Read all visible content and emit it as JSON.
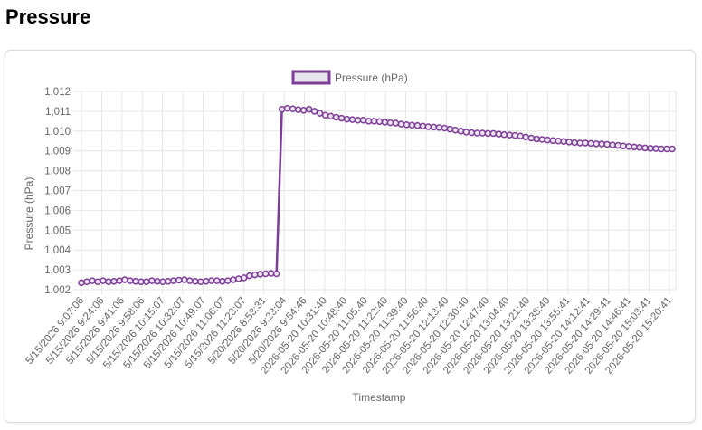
{
  "page": {
    "title": "Pressure"
  },
  "colors": {
    "series": "#7d3c98",
    "legend_fill": "#e8e4ee",
    "grid": "#e6e6e6",
    "text": "#666666"
  },
  "chart_data": {
    "type": "line",
    "title": "",
    "xlabel": "Timestamp",
    "ylabel": "Pressure (hPa)",
    "ylim": [
      1002,
      1012
    ],
    "yticks": [
      "1,002",
      "1,003",
      "1,004",
      "1,005",
      "1,006",
      "1,007",
      "1,008",
      "1,009",
      "1,010",
      "1,011",
      "1,012"
    ],
    "legend_position": "top-center",
    "grid": true,
    "x_tick_labels": [
      "5/15/2026  9:07:06",
      "5/15/2026  9:24:06",
      "5/15/2026  9:41:06",
      "5/15/2026  9:58:06",
      "5/15/2026  10:15:07",
      "5/15/2026  10:32:07",
      "5/15/2026  10:49:07",
      "5/15/2026  11:06:07",
      "5/15/2026  11:23:07",
      "5/20/2026  8:53:31",
      "5/20/2026  9:23:04",
      "5/20/2026  9:54:46",
      "2026-05-20 10:31:40",
      "2026-05-20 10:48:40",
      "2026-05-20 11:05:40",
      "2026-05-20 11:22:40",
      "2026-05-20 11:39:40",
      "2026-05-20 11:56:40",
      "2026-05-20 12:13:40",
      "2026-05-20 12:30:40",
      "2026-05-20 12:47:40",
      "2026-05-20 13:04:40",
      "2026-05-20 13:21:40",
      "2026-05-20 13:38:40",
      "2026-05-20 13:55:41",
      "2026-05-20 14:12:41",
      "2026-05-20 14:29:41",
      "2026-05-20 14:46:41",
      "2026-05-20 15:03:41",
      "2026-05-20 15:20:41"
    ],
    "series": [
      {
        "name": "Pressure (hPa)",
        "values": [
          1002.35,
          1002.4,
          1002.45,
          1002.4,
          1002.45,
          1002.4,
          1002.42,
          1002.45,
          1002.5,
          1002.45,
          1002.42,
          1002.4,
          1002.4,
          1002.45,
          1002.42,
          1002.4,
          1002.42,
          1002.45,
          1002.48,
          1002.5,
          1002.45,
          1002.42,
          1002.4,
          1002.42,
          1002.45,
          1002.45,
          1002.42,
          1002.45,
          1002.5,
          1002.55,
          1002.6,
          1002.7,
          1002.75,
          1002.78,
          1002.8,
          1002.82,
          1002.8,
          1011.1,
          1011.15,
          1011.12,
          1011.08,
          1011.05,
          1011.1,
          1011.0,
          1010.9,
          1010.8,
          1010.75,
          1010.7,
          1010.65,
          1010.6,
          1010.58,
          1010.55,
          1010.55,
          1010.5,
          1010.5,
          1010.48,
          1010.45,
          1010.42,
          1010.4,
          1010.35,
          1010.32,
          1010.3,
          1010.28,
          1010.25,
          1010.22,
          1010.2,
          1010.18,
          1010.15,
          1010.1,
          1010.05,
          1010.0,
          1009.95,
          1009.92,
          1009.9,
          1009.9,
          1009.88,
          1009.88,
          1009.85,
          1009.82,
          1009.8,
          1009.78,
          1009.75,
          1009.7,
          1009.65,
          1009.6,
          1009.58,
          1009.55,
          1009.52,
          1009.5,
          1009.48,
          1009.45,
          1009.42,
          1009.4,
          1009.4,
          1009.38,
          1009.36,
          1009.35,
          1009.33,
          1009.3,
          1009.28,
          1009.25,
          1009.22,
          1009.2,
          1009.18,
          1009.15,
          1009.13,
          1009.12,
          1009.1,
          1009.1,
          1009.1
        ]
      }
    ]
  }
}
